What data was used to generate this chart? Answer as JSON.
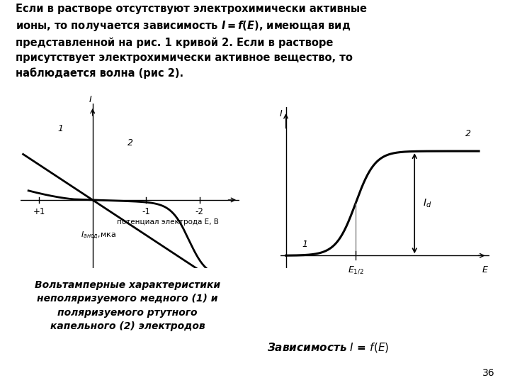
{
  "bg_color": "#ffffff",
  "page_number": "36",
  "left_chart": {
    "x_label": "потенциал электрода E, В",
    "y_label_italic": "I",
    "y_label_sub": "анод",
    "y_label_unit": ",мка",
    "curve1_label": "1",
    "curve2_label": "2",
    "I_label": "I"
  },
  "right_chart": {
    "x_label": "E",
    "y_label": "I",
    "E_half_label": "E_{1/2}",
    "Id_label": "I_d",
    "curve1_label": "1",
    "curve2_label": "2"
  },
  "caption_left": "Вольтамперные характеристики\nнеполяризуемого медного (1) и\nполяризуемого ртутного\nкапельного (2) электродов",
  "caption_right": "Зависимость I = f(E)"
}
